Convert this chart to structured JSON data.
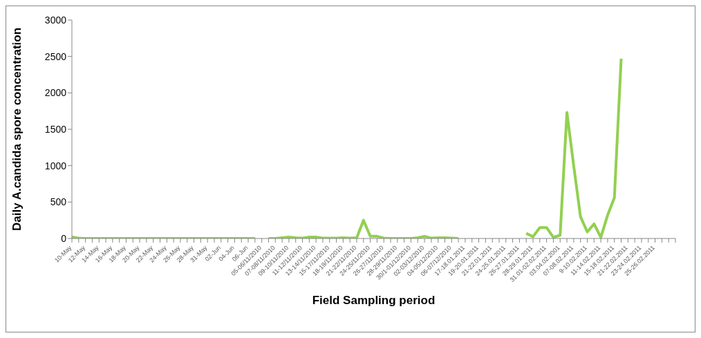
{
  "chart_data": {
    "type": "line",
    "xlabel": "Field Sampling period",
    "ylabel": "Daily A.candida spore concentration",
    "categories": [
      "10-May",
      null,
      "12-May",
      null,
      "14-May",
      null,
      "16-May",
      null,
      "18-May",
      null,
      "20-May",
      null,
      "22-May",
      null,
      "24-May",
      null,
      "26-May",
      null,
      "28-May",
      null,
      "31-May",
      null,
      "02-Jun",
      null,
      "04-Jun",
      null,
      "06-Jun",
      null,
      "05-06/11/2010",
      null,
      "07-08/11/2010",
      null,
      "09-10/11/2010",
      null,
      "11-12/11/2010",
      null,
      "13-14/11/2010",
      null,
      "15-17/11/2010",
      null,
      "18-19/11/2010",
      null,
      "21-22/11/2010",
      null,
      "24-25/11/2010",
      null,
      "26-27/11/2010",
      null,
      "28-29/11/2010",
      null,
      "30/1-01/12/2010",
      null,
      "02-03/12/2010",
      null,
      "04-05/12/2010",
      null,
      "06-07/12/2010",
      null,
      "17-18.01.2011",
      null,
      "19-20.01.2011",
      null,
      "21-22.01.2011",
      null,
      "24-25.01.2011",
      null,
      "26-27.01.2011",
      null,
      "28-29.01.2011",
      null,
      "31.01-02.02.2011",
      null,
      "03.04.02.2001",
      null,
      "07-08.02.2011",
      null,
      "9-10.02.2011",
      null,
      "11-14.02.2011",
      null,
      "15-18.02.2011",
      null,
      "21-22.02.2011",
      null,
      "23-24.02.2011",
      null,
      "25-26.02.2011",
      null,
      null,
      null
    ],
    "series": [
      {
        "color": "#92d050",
        "values": [
          20,
          5,
          0,
          0,
          0,
          0,
          0,
          0,
          0,
          0,
          0,
          0,
          0,
          0,
          0,
          0,
          0,
          0,
          0,
          0,
          0,
          0,
          0,
          0,
          0,
          0,
          0,
          0,
          null,
          0,
          0,
          10,
          20,
          10,
          5,
          20,
          20,
          5,
          5,
          5,
          10,
          5,
          10,
          250,
          30,
          30,
          5,
          0,
          0,
          0,
          0,
          10,
          30,
          5,
          10,
          10,
          5,
          0,
          null,
          null,
          null,
          null,
          null,
          null,
          null,
          null,
          null,
          70,
          25,
          150,
          150,
          15,
          45,
          1730,
          1000,
          300,
          90,
          200,
          15,
          320,
          560,
          2470,
          null,
          null,
          null,
          null,
          null,
          null,
          null,
          null
        ]
      }
    ],
    "ylim": [
      0,
      3000
    ],
    "yticks": [
      0,
      500,
      1000,
      1500,
      2000,
      2500,
      3000
    ],
    "grid": false,
    "legend": false,
    "marker": "none",
    "line_style": "solid"
  }
}
